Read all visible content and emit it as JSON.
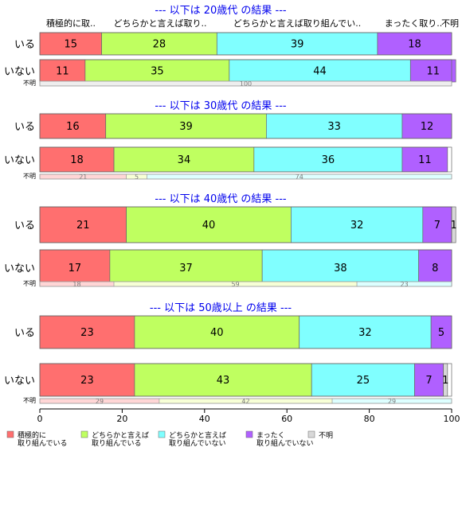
{
  "chart_data": {
    "type": "bar",
    "orientation": "horizontal",
    "stacked": "percent",
    "xlim": [
      0,
      100
    ],
    "xticks": [
      "0",
      "20",
      "40",
      "60",
      "80",
      "100"
    ],
    "grid": false,
    "legend_position": "bottom-left",
    "column_headers": [
      "積極的に取..",
      "どちらかと言えば取り..",
      "どちらかと言えば取り組んでい..",
      "まったく取り..",
      "不明"
    ],
    "series": [
      {
        "name": "積極的に 取り組んでいる",
        "label_lines": [
          "積極的に",
          "取り組んでいる"
        ],
        "color": "#FF6F6F",
        "light_color": "#FFD6D6"
      },
      {
        "name": "どちらかと言えば 取り組んでいる",
        "label_lines": [
          "どちらかと言えば",
          "取り組んでいる"
        ],
        "color": "#BFFF60",
        "light_color": "#F7FFD6"
      },
      {
        "name": "どちらかと言えば 取り組んでいない",
        "label_lines": [
          "どちらかと言えば",
          "取り組んでいない"
        ],
        "color": "#80FFFF",
        "light_color": "#DDFFFF"
      },
      {
        "name": "まったく 取り組んでいない",
        "label_lines": [
          "まったく",
          "取り組んでいない"
        ],
        "color": "#B060FF",
        "light_color": "#EAD6FF"
      },
      {
        "name": "不明",
        "label_lines": [
          "不明"
        ],
        "color": "#D8D8D8",
        "light_color": "#EEEEEE"
      }
    ],
    "panels": [
      {
        "title": "--- 以下は 20歳代 の結果 ---",
        "rows": [
          {
            "label": "いる",
            "values": [
              15,
              28,
              39,
              18,
              0
            ],
            "labels": [
              "15",
              "28",
              "39",
              "18",
              ""
            ]
          },
          {
            "label": "いない",
            "values": [
              11,
              35,
              44,
              11,
              0
            ],
            "labels": [
              "11",
              "35",
              "44",
              "11",
              ""
            ]
          }
        ],
        "unknown": {
          "label": "不明",
          "values": [
            0,
            0,
            0,
            0,
            100
          ],
          "labels": [
            "",
            "",
            "",
            "",
            "100"
          ]
        }
      },
      {
        "title": "--- 以下は 30歳代 の結果 ---",
        "rows": [
          {
            "label": "いる",
            "values": [
              16,
              39,
              33,
              12,
              0
            ],
            "labels": [
              "16",
              "39",
              "33",
              "12",
              ""
            ]
          },
          {
            "label": "いない",
            "values": [
              18,
              34,
              36,
              11,
              0
            ],
            "labels": [
              "18",
              "34",
              "36",
              "11",
              ""
            ]
          }
        ],
        "unknown": {
          "label": "不明",
          "values": [
            21,
            5,
            74,
            0,
            0
          ],
          "labels": [
            "21",
            "5",
            "74",
            "",
            ""
          ]
        }
      },
      {
        "title": "--- 以下は 40歳代 の結果 ---",
        "rows": [
          {
            "label": "いる",
            "values": [
              21,
              40,
              32,
              7,
              1
            ],
            "labels": [
              "21",
              "40",
              "32",
              "7",
              "1"
            ]
          },
          {
            "label": "いない",
            "values": [
              17,
              37,
              38,
              8,
              0
            ],
            "labels": [
              "17",
              "37",
              "38",
              "8",
              ""
            ]
          }
        ],
        "unknown": {
          "label": "不明",
          "values": [
            18,
            59,
            23,
            0,
            0
          ],
          "labels": [
            "18",
            "59",
            "23",
            "",
            ""
          ]
        }
      },
      {
        "title": "--- 以下は 50歳以上 の結果 ---",
        "rows": [
          {
            "label": "いる",
            "values": [
              23,
              40,
              32,
              5,
              0
            ],
            "labels": [
              "23",
              "40",
              "32",
              "5",
              ""
            ]
          },
          {
            "label": "いない",
            "values": [
              23,
              43,
              25,
              7,
              1
            ],
            "labels": [
              "23",
              "43",
              "25",
              "7",
              "1"
            ]
          }
        ],
        "unknown": {
          "label": "不明",
          "values": [
            29,
            42,
            29,
            0,
            0
          ],
          "labels": [
            "29",
            "42",
            "29",
            "",
            ""
          ]
        }
      }
    ]
  }
}
